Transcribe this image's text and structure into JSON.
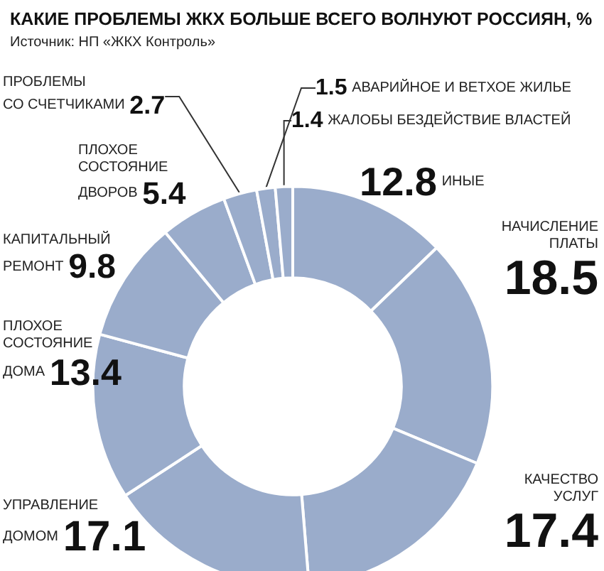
{
  "chart_data": {
    "type": "donut",
    "title": "КАКИЕ ПРОБЛЕМЫ ЖКХ БОЛЬШЕ ВСЕГО ВОЛНУЮТ РОССИЯН, %",
    "annotations": [
      "Источник: НП «ЖКХ Контроль»"
    ],
    "categories": [
      "ИНЫЕ",
      "НАЧИСЛЕНИЕ\nПЛАТЫ",
      "КАЧЕСТВО\nУСЛУГ",
      "УПРАВЛЕНИЕ\nДОМОМ",
      "ПЛОХОЕ\nСОСТОЯНИЕ\nДОМА",
      "КАПИТАЛЬНЫЙ\nРЕМОНТ",
      "ПЛОХОЕ\nСОСТОЯНИЕ\nДВОРОВ",
      "ПРОБЛЕМЫ\nСО СЧЕТЧИКАМИ",
      "АВАРИЙНОЕ И ВЕТХОЕ ЖИЛЬЕ",
      "ЖАЛОБЫ БЕЗДЕЙСТВИЕ ВЛАСТЕЙ"
    ],
    "values": [
      12.8,
      18.5,
      17.4,
      17.1,
      13.4,
      9.8,
      5.4,
      2.7,
      1.5,
      1.4
    ],
    "colors": [
      "#9aaccb",
      "#9aaccb",
      "#9aaccb",
      "#9aaccb",
      "#9aaccb",
      "#9aaccb",
      "#9aaccb",
      "#9aaccb",
      "#9aaccb",
      "#9aaccb"
    ],
    "data_labels": true,
    "legend": false
  }
}
